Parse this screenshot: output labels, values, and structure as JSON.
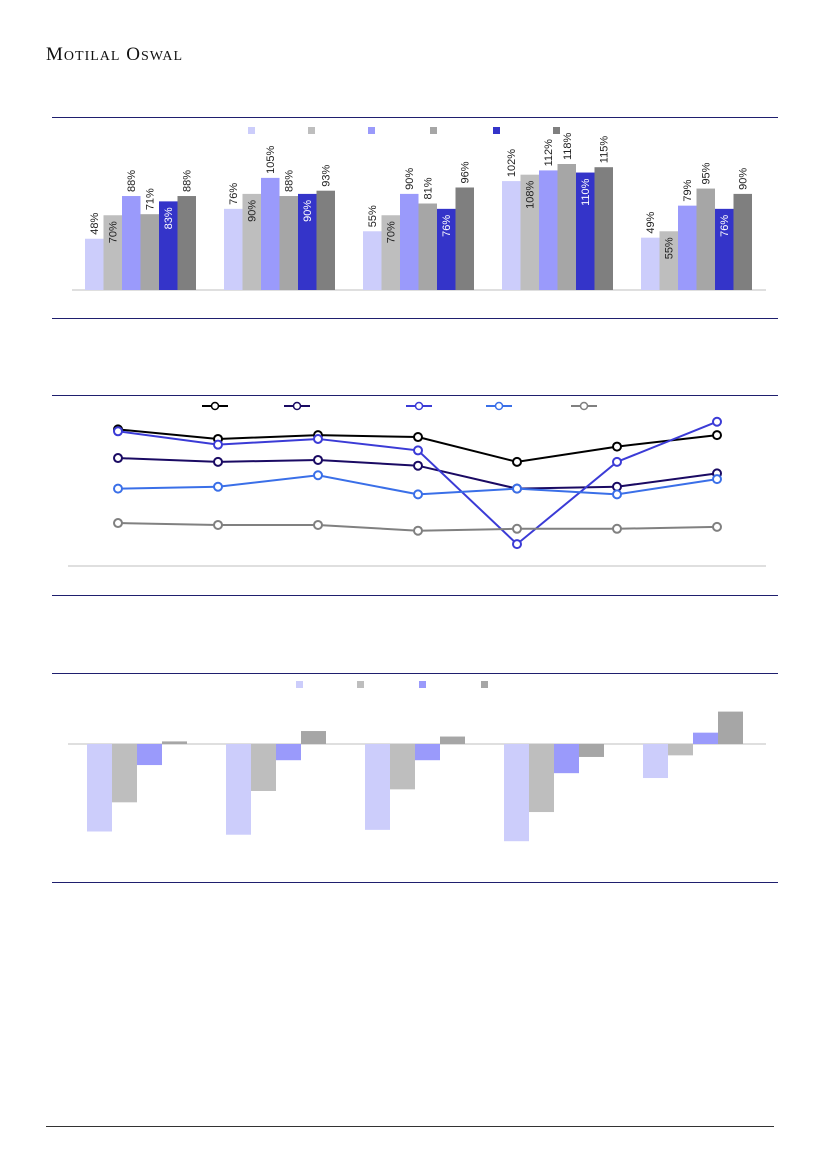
{
  "brand": {
    "word1_initial": "M",
    "word1_rest": "OTILAL",
    "word2_initial": "O",
    "word2_rest": "SWAL"
  },
  "colors": {
    "s1": "#cccdfb",
    "s2": "#bebebe",
    "s3": "#9a9afb",
    "s4": "#a6a6a6",
    "s5": "#3434c9",
    "s6": "#7f7f7f",
    "line1": "#000000",
    "line2": "#1a0a63",
    "line3": "#3b3bd6",
    "line4": "#3a6fe8",
    "line5": "#808080"
  },
  "chart_data": [
    {
      "type": "bar",
      "categories": [
        "",
        "",
        "",
        "",
        ""
      ],
      "series": [
        {
          "values": [
            48,
            76,
            55,
            102,
            49
          ]
        },
        {
          "values": [
            70,
            90,
            70,
            108,
            55
          ]
        },
        {
          "values": [
            88,
            105,
            90,
            112,
            79
          ]
        },
        {
          "values": [
            71,
            88,
            81,
            118,
            95
          ]
        },
        {
          "values": [
            83,
            90,
            76,
            110,
            76
          ]
        },
        {
          "values": [
            88,
            93,
            96,
            115,
            90
          ]
        }
      ],
      "ylim": [
        0,
        120
      ],
      "legend": "top-center"
    },
    {
      "type": "line",
      "x": [
        "",
        "",
        "",
        "",
        "",
        "",
        ""
      ],
      "series": [
        {
          "values": [
            97,
            92,
            94,
            93,
            80,
            88,
            94
          ]
        },
        {
          "values": [
            82,
            80,
            81,
            78,
            66,
            67,
            74
          ]
        },
        {
          "values": [
            96,
            89,
            92,
            86,
            37,
            80,
            101
          ]
        },
        {
          "values": [
            66,
            67,
            73,
            63,
            66,
            63,
            71
          ]
        },
        {
          "values": [
            48,
            47,
            47,
            44,
            45,
            45,
            46
          ]
        }
      ],
      "ylim": [
        30,
        110
      ],
      "legend": "top-center"
    },
    {
      "type": "bar",
      "categories": [
        "",
        "",
        "",
        "",
        ""
      ],
      "series": [
        {
          "values": [
            -27,
            -28,
            -26.5,
            -30,
            -10.5
          ]
        },
        {
          "values": [
            -18,
            -14.5,
            -14,
            -21,
            -3.5
          ]
        },
        {
          "values": [
            -6.5,
            -5,
            -5,
            -9,
            3.5
          ]
        },
        {
          "values": [
            0.8,
            4,
            2.3,
            -4,
            10
          ]
        }
      ],
      "ylim": [
        -32,
        12
      ],
      "legend": "top-center"
    }
  ]
}
